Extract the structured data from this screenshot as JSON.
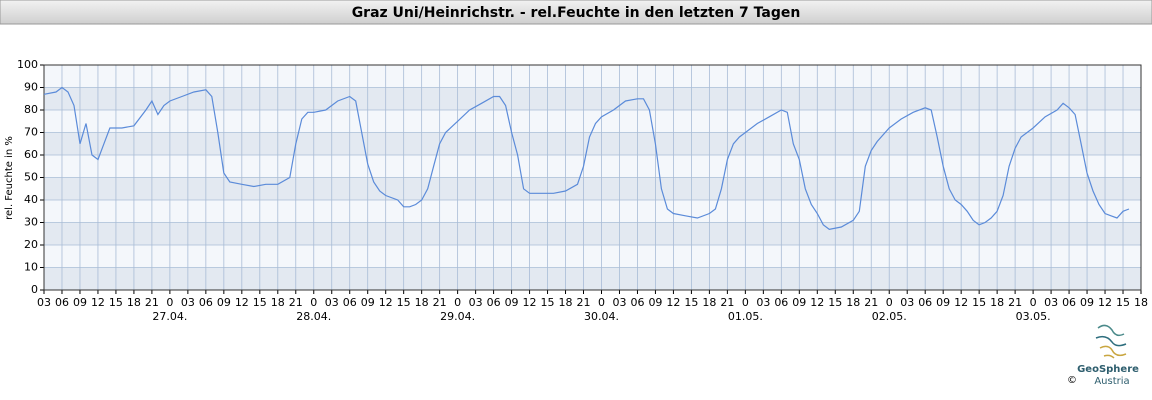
{
  "chart_data": {
    "type": "line",
    "title": "Graz Uni/Heinrichstr. - rel.Feuchte in den letzten 7 Tagen",
    "y_label": "rel. Feuchte in %",
    "color": "#5b8bd9",
    "grid": true,
    "xlim": [
      3,
      186
    ],
    "ylim": [
      0,
      100
    ],
    "yticks": [
      0,
      10,
      20,
      30,
      40,
      50,
      60,
      70,
      80,
      90,
      100
    ],
    "xticks": [
      {
        "value": 3,
        "label": "03"
      },
      {
        "value": 6,
        "label": "06"
      },
      {
        "value": 9,
        "label": "09"
      },
      {
        "value": 12,
        "label": "12"
      },
      {
        "value": 15,
        "label": "15"
      },
      {
        "value": 18,
        "label": "18"
      },
      {
        "value": 21,
        "label": "21"
      },
      {
        "value": 24,
        "label": "0"
      },
      {
        "value": 27,
        "label": "03"
      },
      {
        "value": 30,
        "label": "06"
      },
      {
        "value": 33,
        "label": "09"
      },
      {
        "value": 36,
        "label": "12"
      },
      {
        "value": 39,
        "label": "15"
      },
      {
        "value": 42,
        "label": "18"
      },
      {
        "value": 45,
        "label": "21"
      },
      {
        "value": 48,
        "label": "0"
      },
      {
        "value": 51,
        "label": "03"
      },
      {
        "value": 54,
        "label": "06"
      },
      {
        "value": 57,
        "label": "09"
      },
      {
        "value": 60,
        "label": "12"
      },
      {
        "value": 63,
        "label": "15"
      },
      {
        "value": 66,
        "label": "18"
      },
      {
        "value": 69,
        "label": "21"
      },
      {
        "value": 72,
        "label": "0"
      },
      {
        "value": 75,
        "label": "03"
      },
      {
        "value": 78,
        "label": "06"
      },
      {
        "value": 81,
        "label": "09"
      },
      {
        "value": 84,
        "label": "12"
      },
      {
        "value": 87,
        "label": "15"
      },
      {
        "value": 90,
        "label": "18"
      },
      {
        "value": 93,
        "label": "21"
      },
      {
        "value": 96,
        "label": "0"
      },
      {
        "value": 99,
        "label": "03"
      },
      {
        "value": 102,
        "label": "06"
      },
      {
        "value": 105,
        "label": "09"
      },
      {
        "value": 108,
        "label": "12"
      },
      {
        "value": 111,
        "label": "15"
      },
      {
        "value": 114,
        "label": "18"
      },
      {
        "value": 117,
        "label": "21"
      },
      {
        "value": 120,
        "label": "0"
      },
      {
        "value": 123,
        "label": "03"
      },
      {
        "value": 126,
        "label": "06"
      },
      {
        "value": 129,
        "label": "09"
      },
      {
        "value": 132,
        "label": "12"
      },
      {
        "value": 135,
        "label": "15"
      },
      {
        "value": 138,
        "label": "18"
      },
      {
        "value": 141,
        "label": "21"
      },
      {
        "value": 144,
        "label": "0"
      },
      {
        "value": 147,
        "label": "03"
      },
      {
        "value": 150,
        "label": "06"
      },
      {
        "value": 153,
        "label": "09"
      },
      {
        "value": 156,
        "label": "12"
      },
      {
        "value": 159,
        "label": "15"
      },
      {
        "value": 162,
        "label": "18"
      },
      {
        "value": 165,
        "label": "21"
      },
      {
        "value": 168,
        "label": "0"
      },
      {
        "value": 171,
        "label": "03"
      },
      {
        "value": 174,
        "label": "06"
      },
      {
        "value": 177,
        "label": "09"
      },
      {
        "value": 180,
        "label": "12"
      },
      {
        "value": 183,
        "label": "15"
      },
      {
        "value": 186,
        "label": "18"
      }
    ],
    "date_labels": [
      {
        "value": 24,
        "label": "27.04."
      },
      {
        "value": 48,
        "label": "28.04."
      },
      {
        "value": 72,
        "label": "29.04."
      },
      {
        "value": 96,
        "label": "30.04."
      },
      {
        "value": 120,
        "label": "01.05."
      },
      {
        "value": 144,
        "label": "02.05."
      },
      {
        "value": 168,
        "label": "03.05."
      }
    ],
    "x": [
      3,
      5,
      6,
      7,
      8,
      9,
      10,
      11,
      12,
      13,
      14,
      16,
      18,
      20,
      21,
      22,
      23,
      24,
      26,
      28,
      30,
      31,
      32,
      33,
      34,
      36,
      38,
      40,
      42,
      44,
      45,
      46,
      47,
      48,
      50,
      52,
      54,
      55,
      56,
      57,
      58,
      59,
      60,
      62,
      63,
      64,
      65,
      66,
      67,
      68,
      69,
      70,
      72,
      74,
      76,
      78,
      79,
      80,
      81,
      82,
      83,
      84,
      86,
      88,
      90,
      92,
      93,
      94,
      95,
      96,
      98,
      100,
      102,
      103,
      104,
      105,
      106,
      107,
      108,
      110,
      112,
      114,
      115,
      116,
      117,
      118,
      119,
      120,
      122,
      124,
      126,
      127,
      128,
      129,
      130,
      131,
      132,
      133,
      134,
      136,
      138,
      139,
      140,
      141,
      142,
      144,
      146,
      148,
      150,
      151,
      152,
      153,
      154,
      155,
      156,
      157,
      158,
      159,
      160,
      161,
      162,
      163,
      164,
      165,
      166,
      168,
      170,
      172,
      173,
      174,
      175,
      176,
      177,
      178,
      179,
      180,
      181,
      182,
      183,
      184
    ],
    "values": [
      87,
      88,
      90,
      88,
      82,
      65,
      74,
      60,
      58,
      65,
      72,
      72,
      73,
      80,
      84,
      78,
      82,
      84,
      86,
      88,
      89,
      86,
      70,
      52,
      48,
      47,
      46,
      47,
      47,
      50,
      65,
      76,
      79,
      79,
      80,
      84,
      86,
      84,
      70,
      56,
      48,
      44,
      42,
      40,
      37,
      37,
      38,
      40,
      45,
      55,
      65,
      70,
      75,
      80,
      83,
      86,
      86,
      82,
      70,
      60,
      45,
      43,
      43,
      43,
      44,
      47,
      55,
      68,
      74,
      77,
      80,
      84,
      85,
      85,
      80,
      65,
      45,
      36,
      34,
      33,
      32,
      34,
      36,
      45,
      58,
      65,
      68,
      70,
      74,
      77,
      80,
      79,
      65,
      58,
      45,
      38,
      34,
      29,
      27,
      28,
      31,
      35,
      55,
      62,
      66,
      72,
      76,
      79,
      81,
      80,
      68,
      55,
      45,
      40,
      38,
      35,
      31,
      29,
      30,
      32,
      35,
      42,
      55,
      63,
      68,
      72,
      77,
      80,
      83,
      81,
      78,
      65,
      52,
      44,
      38,
      34,
      33,
      32,
      35,
      36
    ]
  },
  "logo": {
    "name": "GeoSphere",
    "sub": "Austria",
    "copyright": "©"
  }
}
